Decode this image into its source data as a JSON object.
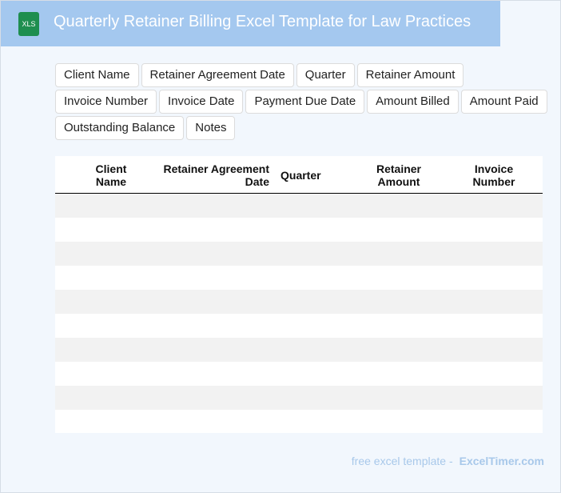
{
  "header": {
    "title": "Quarterly Retainer Billing Excel Template for Law Practices",
    "icon_label": "XLS"
  },
  "tags": [
    "Client Name",
    "Retainer Agreement Date",
    "Quarter",
    "Retainer Amount",
    "Invoice Number",
    "Invoice Date",
    "Payment Due Date",
    "Amount Billed",
    "Amount Paid",
    "Outstanding Balance",
    "Notes"
  ],
  "table": {
    "columns": [
      "Client Name",
      "Retainer Agreement Date",
      "Quarter",
      "Retainer Amount",
      "Invoice Number"
    ]
  },
  "footer": {
    "prefix": "free excel template -",
    "site": "ExcelTimer.com"
  }
}
